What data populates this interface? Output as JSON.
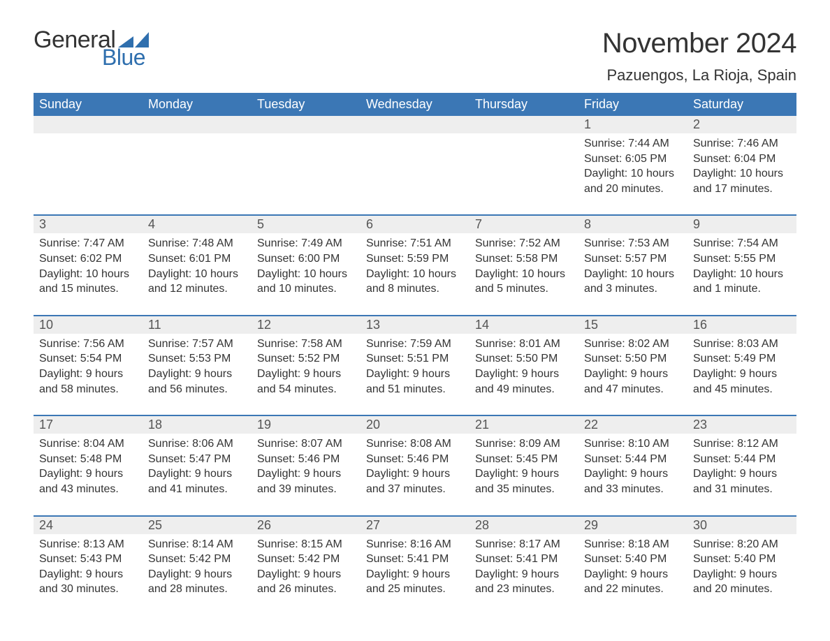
{
  "brand": {
    "word1": "General",
    "word2": "Blue",
    "color_text": "#333333",
    "color_blue": "#2f6fae"
  },
  "title": {
    "month": "November 2024",
    "location": "Pazuengos, La Rioja, Spain"
  },
  "calendar": {
    "header_bg": "#3b77b5",
    "header_fg": "#ffffff",
    "daynum_bg": "#eeeeee",
    "row_divider": "#3b77b5",
    "days": [
      "Sunday",
      "Monday",
      "Tuesday",
      "Wednesday",
      "Thursday",
      "Friday",
      "Saturday"
    ],
    "weeks": [
      [
        null,
        null,
        null,
        null,
        null,
        {
          "n": "1",
          "sunrise": "Sunrise: 7:44 AM",
          "sunset": "Sunset: 6:05 PM",
          "daylight": "Daylight: 10 hours and 20 minutes."
        },
        {
          "n": "2",
          "sunrise": "Sunrise: 7:46 AM",
          "sunset": "Sunset: 6:04 PM",
          "daylight": "Daylight: 10 hours and 17 minutes."
        }
      ],
      [
        {
          "n": "3",
          "sunrise": "Sunrise: 7:47 AM",
          "sunset": "Sunset: 6:02 PM",
          "daylight": "Daylight: 10 hours and 15 minutes."
        },
        {
          "n": "4",
          "sunrise": "Sunrise: 7:48 AM",
          "sunset": "Sunset: 6:01 PM",
          "daylight": "Daylight: 10 hours and 12 minutes."
        },
        {
          "n": "5",
          "sunrise": "Sunrise: 7:49 AM",
          "sunset": "Sunset: 6:00 PM",
          "daylight": "Daylight: 10 hours and 10 minutes."
        },
        {
          "n": "6",
          "sunrise": "Sunrise: 7:51 AM",
          "sunset": "Sunset: 5:59 PM",
          "daylight": "Daylight: 10 hours and 8 minutes."
        },
        {
          "n": "7",
          "sunrise": "Sunrise: 7:52 AM",
          "sunset": "Sunset: 5:58 PM",
          "daylight": "Daylight: 10 hours and 5 minutes."
        },
        {
          "n": "8",
          "sunrise": "Sunrise: 7:53 AM",
          "sunset": "Sunset: 5:57 PM",
          "daylight": "Daylight: 10 hours and 3 minutes."
        },
        {
          "n": "9",
          "sunrise": "Sunrise: 7:54 AM",
          "sunset": "Sunset: 5:55 PM",
          "daylight": "Daylight: 10 hours and 1 minute."
        }
      ],
      [
        {
          "n": "10",
          "sunrise": "Sunrise: 7:56 AM",
          "sunset": "Sunset: 5:54 PM",
          "daylight": "Daylight: 9 hours and 58 minutes."
        },
        {
          "n": "11",
          "sunrise": "Sunrise: 7:57 AM",
          "sunset": "Sunset: 5:53 PM",
          "daylight": "Daylight: 9 hours and 56 minutes."
        },
        {
          "n": "12",
          "sunrise": "Sunrise: 7:58 AM",
          "sunset": "Sunset: 5:52 PM",
          "daylight": "Daylight: 9 hours and 54 minutes."
        },
        {
          "n": "13",
          "sunrise": "Sunrise: 7:59 AM",
          "sunset": "Sunset: 5:51 PM",
          "daylight": "Daylight: 9 hours and 51 minutes."
        },
        {
          "n": "14",
          "sunrise": "Sunrise: 8:01 AM",
          "sunset": "Sunset: 5:50 PM",
          "daylight": "Daylight: 9 hours and 49 minutes."
        },
        {
          "n": "15",
          "sunrise": "Sunrise: 8:02 AM",
          "sunset": "Sunset: 5:50 PM",
          "daylight": "Daylight: 9 hours and 47 minutes."
        },
        {
          "n": "16",
          "sunrise": "Sunrise: 8:03 AM",
          "sunset": "Sunset: 5:49 PM",
          "daylight": "Daylight: 9 hours and 45 minutes."
        }
      ],
      [
        {
          "n": "17",
          "sunrise": "Sunrise: 8:04 AM",
          "sunset": "Sunset: 5:48 PM",
          "daylight": "Daylight: 9 hours and 43 minutes."
        },
        {
          "n": "18",
          "sunrise": "Sunrise: 8:06 AM",
          "sunset": "Sunset: 5:47 PM",
          "daylight": "Daylight: 9 hours and 41 minutes."
        },
        {
          "n": "19",
          "sunrise": "Sunrise: 8:07 AM",
          "sunset": "Sunset: 5:46 PM",
          "daylight": "Daylight: 9 hours and 39 minutes."
        },
        {
          "n": "20",
          "sunrise": "Sunrise: 8:08 AM",
          "sunset": "Sunset: 5:46 PM",
          "daylight": "Daylight: 9 hours and 37 minutes."
        },
        {
          "n": "21",
          "sunrise": "Sunrise: 8:09 AM",
          "sunset": "Sunset: 5:45 PM",
          "daylight": "Daylight: 9 hours and 35 minutes."
        },
        {
          "n": "22",
          "sunrise": "Sunrise: 8:10 AM",
          "sunset": "Sunset: 5:44 PM",
          "daylight": "Daylight: 9 hours and 33 minutes."
        },
        {
          "n": "23",
          "sunrise": "Sunrise: 8:12 AM",
          "sunset": "Sunset: 5:44 PM",
          "daylight": "Daylight: 9 hours and 31 minutes."
        }
      ],
      [
        {
          "n": "24",
          "sunrise": "Sunrise: 8:13 AM",
          "sunset": "Sunset: 5:43 PM",
          "daylight": "Daylight: 9 hours and 30 minutes."
        },
        {
          "n": "25",
          "sunrise": "Sunrise: 8:14 AM",
          "sunset": "Sunset: 5:42 PM",
          "daylight": "Daylight: 9 hours and 28 minutes."
        },
        {
          "n": "26",
          "sunrise": "Sunrise: 8:15 AM",
          "sunset": "Sunset: 5:42 PM",
          "daylight": "Daylight: 9 hours and 26 minutes."
        },
        {
          "n": "27",
          "sunrise": "Sunrise: 8:16 AM",
          "sunset": "Sunset: 5:41 PM",
          "daylight": "Daylight: 9 hours and 25 minutes."
        },
        {
          "n": "28",
          "sunrise": "Sunrise: 8:17 AM",
          "sunset": "Sunset: 5:41 PM",
          "daylight": "Daylight: 9 hours and 23 minutes."
        },
        {
          "n": "29",
          "sunrise": "Sunrise: 8:18 AM",
          "sunset": "Sunset: 5:40 PM",
          "daylight": "Daylight: 9 hours and 22 minutes."
        },
        {
          "n": "30",
          "sunrise": "Sunrise: 8:20 AM",
          "sunset": "Sunset: 5:40 PM",
          "daylight": "Daylight: 9 hours and 20 minutes."
        }
      ]
    ]
  }
}
